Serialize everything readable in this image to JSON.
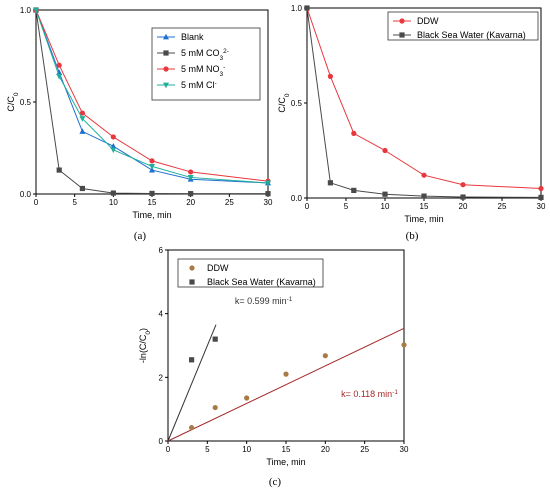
{
  "chart_data": [
    {
      "id": "a",
      "type": "line",
      "panel_label": "(a)",
      "xlabel": "Time, min",
      "ylabel": "C/C",
      "ylabel_sub": "0",
      "xlim": [
        0,
        30
      ],
      "ylim": [
        0,
        1.0
      ],
      "xticks": [
        0,
        5,
        10,
        15,
        20,
        25,
        30
      ],
      "yticks": [
        0.0,
        0.5,
        1.0
      ],
      "ytick_labels": [
        "0.0",
        "0.5",
        "1.0"
      ],
      "legend": "top-right",
      "series": [
        {
          "name": "Blank",
          "name_sub": "",
          "name_sup": "",
          "color": "#1f6fd1",
          "marker": "triangle-up",
          "x": [
            0,
            3,
            6,
            10,
            15,
            20,
            30
          ],
          "y": [
            1.0,
            0.66,
            0.34,
            0.26,
            0.13,
            0.08,
            0.06
          ]
        },
        {
          "name": "5 mM CO",
          "name_sub": "3",
          "name_sup": "2-",
          "color": "#4a4a4a",
          "marker": "square",
          "x": [
            0,
            3,
            6,
            10,
            15,
            20,
            30
          ],
          "y": [
            1.0,
            0.13,
            0.03,
            0.005,
            0.003,
            0.002,
            0.002
          ]
        },
        {
          "name": "5 mM NO",
          "name_sub": "3",
          "name_sup": "-",
          "color": "#e8383d",
          "marker": "circle",
          "x": [
            0,
            3,
            6,
            10,
            15,
            20,
            30
          ],
          "y": [
            1.0,
            0.7,
            0.44,
            0.31,
            0.18,
            0.12,
            0.07
          ]
        },
        {
          "name": "5 mM Cl",
          "name_sub": "",
          "name_sup": "-",
          "color": "#1fae9a",
          "marker": "triangle-down",
          "x": [
            0,
            3,
            6,
            10,
            15,
            20,
            30
          ],
          "y": [
            1.0,
            0.64,
            0.41,
            0.24,
            0.15,
            0.09,
            0.06
          ]
        }
      ]
    },
    {
      "id": "b",
      "type": "line",
      "panel_label": "(b)",
      "xlabel": "Time, min",
      "ylabel": "C/C",
      "ylabel_sub": "0",
      "xlim": [
        0,
        30
      ],
      "ylim": [
        0,
        1.0
      ],
      "xticks": [
        0,
        5,
        10,
        15,
        20,
        25,
        30
      ],
      "yticks": [
        0.0,
        0.5,
        1.0
      ],
      "ytick_labels": [
        "0.0",
        "0.5",
        "1.0"
      ],
      "legend": "top-right",
      "series": [
        {
          "name": "DDW",
          "color": "#e8383d",
          "marker": "circle",
          "x": [
            0,
            3,
            6,
            10,
            15,
            20,
            30
          ],
          "y": [
            1.0,
            0.64,
            0.34,
            0.25,
            0.12,
            0.07,
            0.05
          ]
        },
        {
          "name": "Black Sea Water (Kavarna)",
          "color": "#4a4a4a",
          "marker": "square",
          "x": [
            0,
            3,
            6,
            10,
            15,
            20,
            30
          ],
          "y": [
            1.0,
            0.08,
            0.04,
            0.02,
            0.01,
            0.005,
            0.003
          ]
        }
      ]
    },
    {
      "id": "c",
      "type": "scatter",
      "panel_label": "(c)",
      "xlabel": "Time, min",
      "ylabel": "-ln(C/C",
      "ylabel_sub": "0",
      "ylabel_end": ")",
      "xlim": [
        0,
        30
      ],
      "ylim": [
        0,
        6
      ],
      "xticks": [
        0,
        5,
        10,
        15,
        20,
        25,
        30
      ],
      "yticks": [
        0,
        2,
        4,
        6
      ],
      "ytick_labels": [
        "0",
        "2",
        "4",
        "6"
      ],
      "legend": "top-left",
      "series": [
        {
          "name": "DDW",
          "color": "#a87a45",
          "marker": "circle",
          "x": [
            3,
            6,
            10,
            15,
            20,
            30
          ],
          "y": [
            0.42,
            1.05,
            1.35,
            2.1,
            2.68,
            3.02
          ]
        },
        {
          "name": "Black Sea Water (Kavarna)",
          "color": "#4a4a4a",
          "marker": "square",
          "x": [
            3,
            6
          ],
          "y": [
            2.55,
            3.2
          ]
        }
      ],
      "fit_lines": [
        {
          "color": "#a52a2a",
          "slope": 0.118,
          "x_range": [
            0,
            30
          ],
          "label": "k= 0.118 min",
          "label_sup": "-1",
          "label_x": 22,
          "label_y": 1.38
        },
        {
          "color": "#333333",
          "slope": 0.599,
          "x_range": [
            0,
            6.1
          ],
          "label": "k= 0.599 min",
          "label_sup": "-1",
          "label_x": 8.5,
          "label_y": 4.3
        }
      ]
    }
  ]
}
